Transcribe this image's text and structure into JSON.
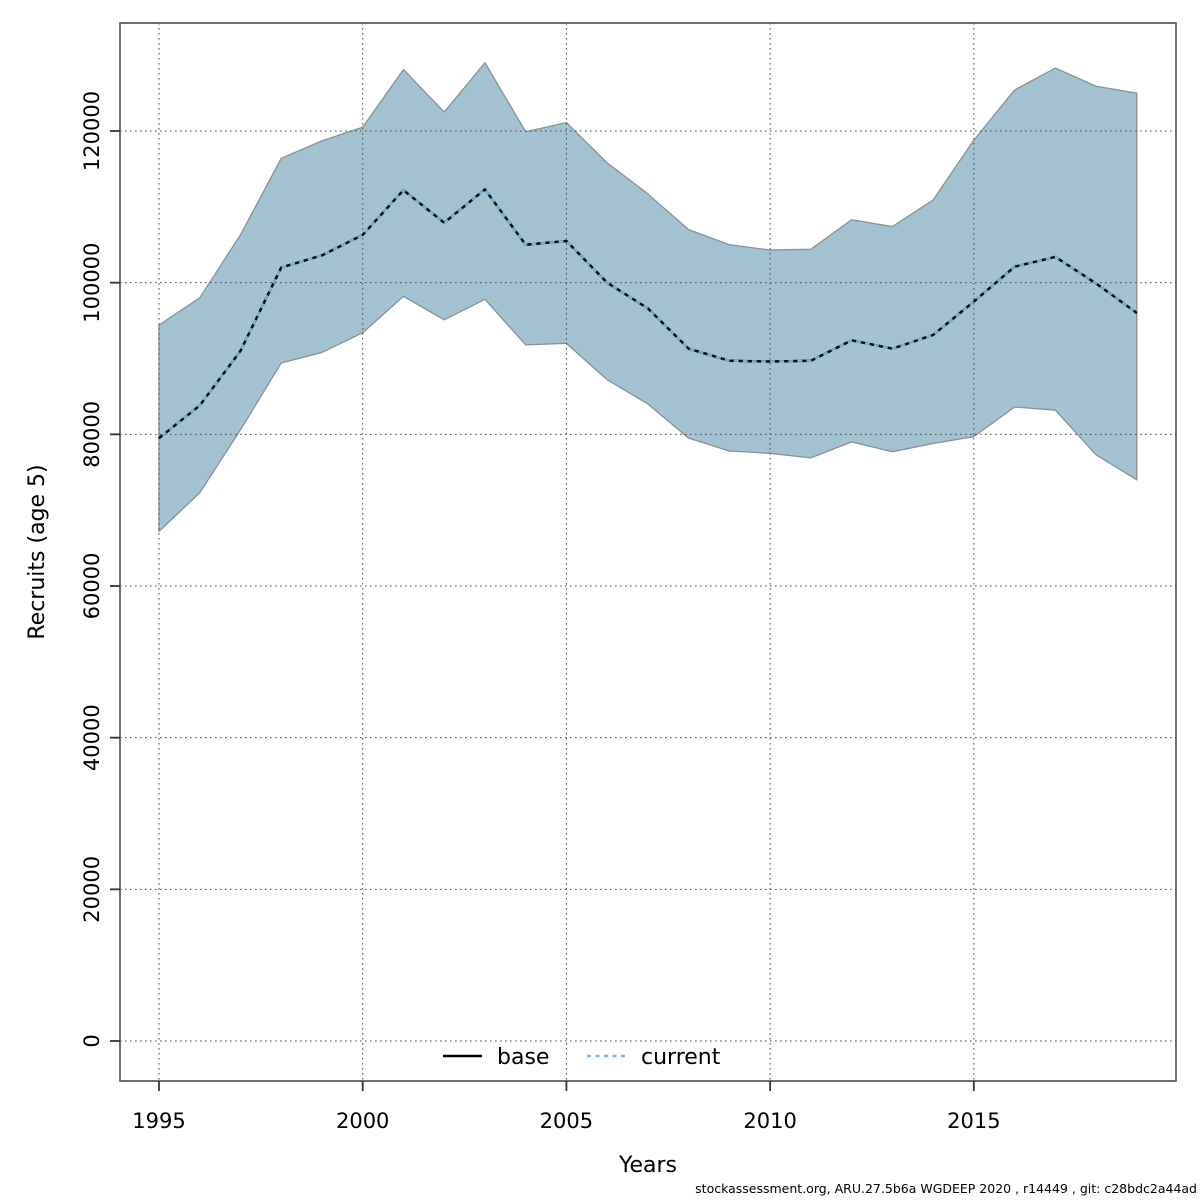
{
  "figure": {
    "kind": "stock-assessment recruitment plot"
  },
  "axes": {
    "x_label": "Years",
    "y_label": "Recruits (age 5)",
    "x_ticks": [
      1995,
      2000,
      2005,
      2010,
      2015
    ],
    "y_ticks": [
      0,
      20000,
      40000,
      60000,
      80000,
      100000,
      120000
    ]
  },
  "legend": {
    "items": [
      {
        "label": "base",
        "style": "solid",
        "color": "#000000"
      },
      {
        "label": "current",
        "style": "dotted",
        "color": "#74b7e0"
      }
    ]
  },
  "footer": {
    "text": "stockassessment.org, ARU.27.5b6a WGDEEP 2020 , r14449 , git: c28bdc2a44ad"
  },
  "colors": {
    "band_fill": "#a3c3d3",
    "band_edge": "#87909a",
    "base_line": "#000000",
    "current_line_blue": "#74b7e0",
    "current_line_dash": "#0a0a0a",
    "gridline": "#4a4a4a",
    "plot_border": "#616161",
    "tick": "#333333",
    "text": "#000000",
    "background": "#ffffff"
  },
  "chart_data": {
    "type": "line",
    "title": "",
    "xlabel": "Years",
    "ylabel": "Recruits (age 5)",
    "x": [
      1995,
      1996,
      1997,
      1998,
      1999,
      2000,
      2001,
      2002,
      2003,
      2004,
      2005,
      2006,
      2007,
      2008,
      2009,
      2010,
      2011,
      2012,
      2013,
      2014,
      2015,
      2016,
      2017,
      2018,
      2019
    ],
    "series": [
      {
        "name": "base",
        "values": [
          79500,
          83800,
          91000,
          102000,
          103600,
          106300,
          112200,
          107900,
          112300,
          105000,
          105500,
          100000,
          96600,
          91300,
          89700,
          89600,
          89700,
          92400,
          91300,
          93100,
          97500,
          102100,
          103400,
          99900,
          96000
        ]
      },
      {
        "name": "current",
        "values": [
          79500,
          83800,
          91000,
          102000,
          103600,
          106300,
          112200,
          107900,
          112300,
          105000,
          105500,
          100000,
          96600,
          91300,
          89700,
          89600,
          89700,
          92400,
          91300,
          93100,
          97500,
          102100,
          103400,
          99900,
          96000
        ]
      }
    ],
    "band": {
      "belongs_to": "current",
      "lower": [
        67200,
        72300,
        80600,
        89400,
        90800,
        93400,
        98200,
        95100,
        97800,
        91800,
        92000,
        87200,
        84000,
        79500,
        77800,
        77500,
        76900,
        79000,
        77700,
        78800,
        79700,
        83600,
        83200,
        77300,
        74000
      ],
      "upper": [
        94400,
        98000,
        106300,
        116400,
        118700,
        120500,
        128100,
        122500,
        129000,
        119900,
        121100,
        115800,
        111700,
        107000,
        105000,
        104300,
        104400,
        108300,
        107400,
        110900,
        118800,
        125400,
        128300,
        125900,
        125000
      ]
    },
    "xlim": [
      1994.043,
      2019.962
    ],
    "ylim": [
      -5275,
      134242
    ],
    "grid": true,
    "grid_style": "dotted",
    "legend_position": "bottom-center",
    "x_ticks": [
      1995,
      2000,
      2005,
      2010,
      2015
    ],
    "y_ticks": [
      0,
      20000,
      40000,
      60000,
      80000,
      100000,
      120000
    ]
  }
}
